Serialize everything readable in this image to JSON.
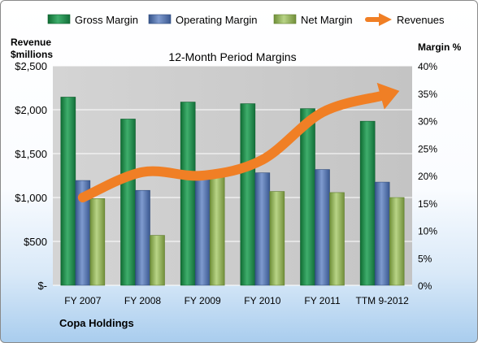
{
  "chart_data": {
    "type": "bar",
    "title": "12-Month Period Margins",
    "company": "Copa Holdings",
    "left_axis_label": [
      "Revenue",
      "$millions"
    ],
    "right_axis_label": "Margin %",
    "categories": [
      "FY 2007",
      "FY 2008",
      "FY 2009",
      "FY 2010",
      "FY 2011",
      "TTM 9-2012"
    ],
    "left_ticks": [
      "$-",
      "$500",
      "$1,000",
      "$1,500",
      "$2,000",
      "$2,500"
    ],
    "right_ticks": [
      "0%",
      "5%",
      "10%",
      "15%",
      "20%",
      "25%",
      "30%",
      "35%",
      "40%"
    ],
    "ylim_right": [
      0,
      40
    ],
    "ylim_left": [
      0,
      2500
    ],
    "series": [
      {
        "name": "Gross Margin",
        "color": "#1e8a48",
        "values": [
          34.3,
          30.3,
          33.4,
          33.1,
          32.2,
          29.9
        ]
      },
      {
        "name": "Operating Margin",
        "color": "#4f6fa8",
        "values": [
          19.1,
          17.3,
          20.6,
          20.5,
          21.1,
          18.8
        ]
      },
      {
        "name": "Net Margin",
        "color": "#93b557",
        "values": [
          15.8,
          9.1,
          19.8,
          17.1,
          16.9,
          16.0
        ]
      }
    ],
    "line_series": {
      "name": "Revenues",
      "color": "#f07f25",
      "values": [
        1000,
        1290,
        1250,
        1430,
        1970,
        2160
      ]
    },
    "legend_position": "top"
  }
}
